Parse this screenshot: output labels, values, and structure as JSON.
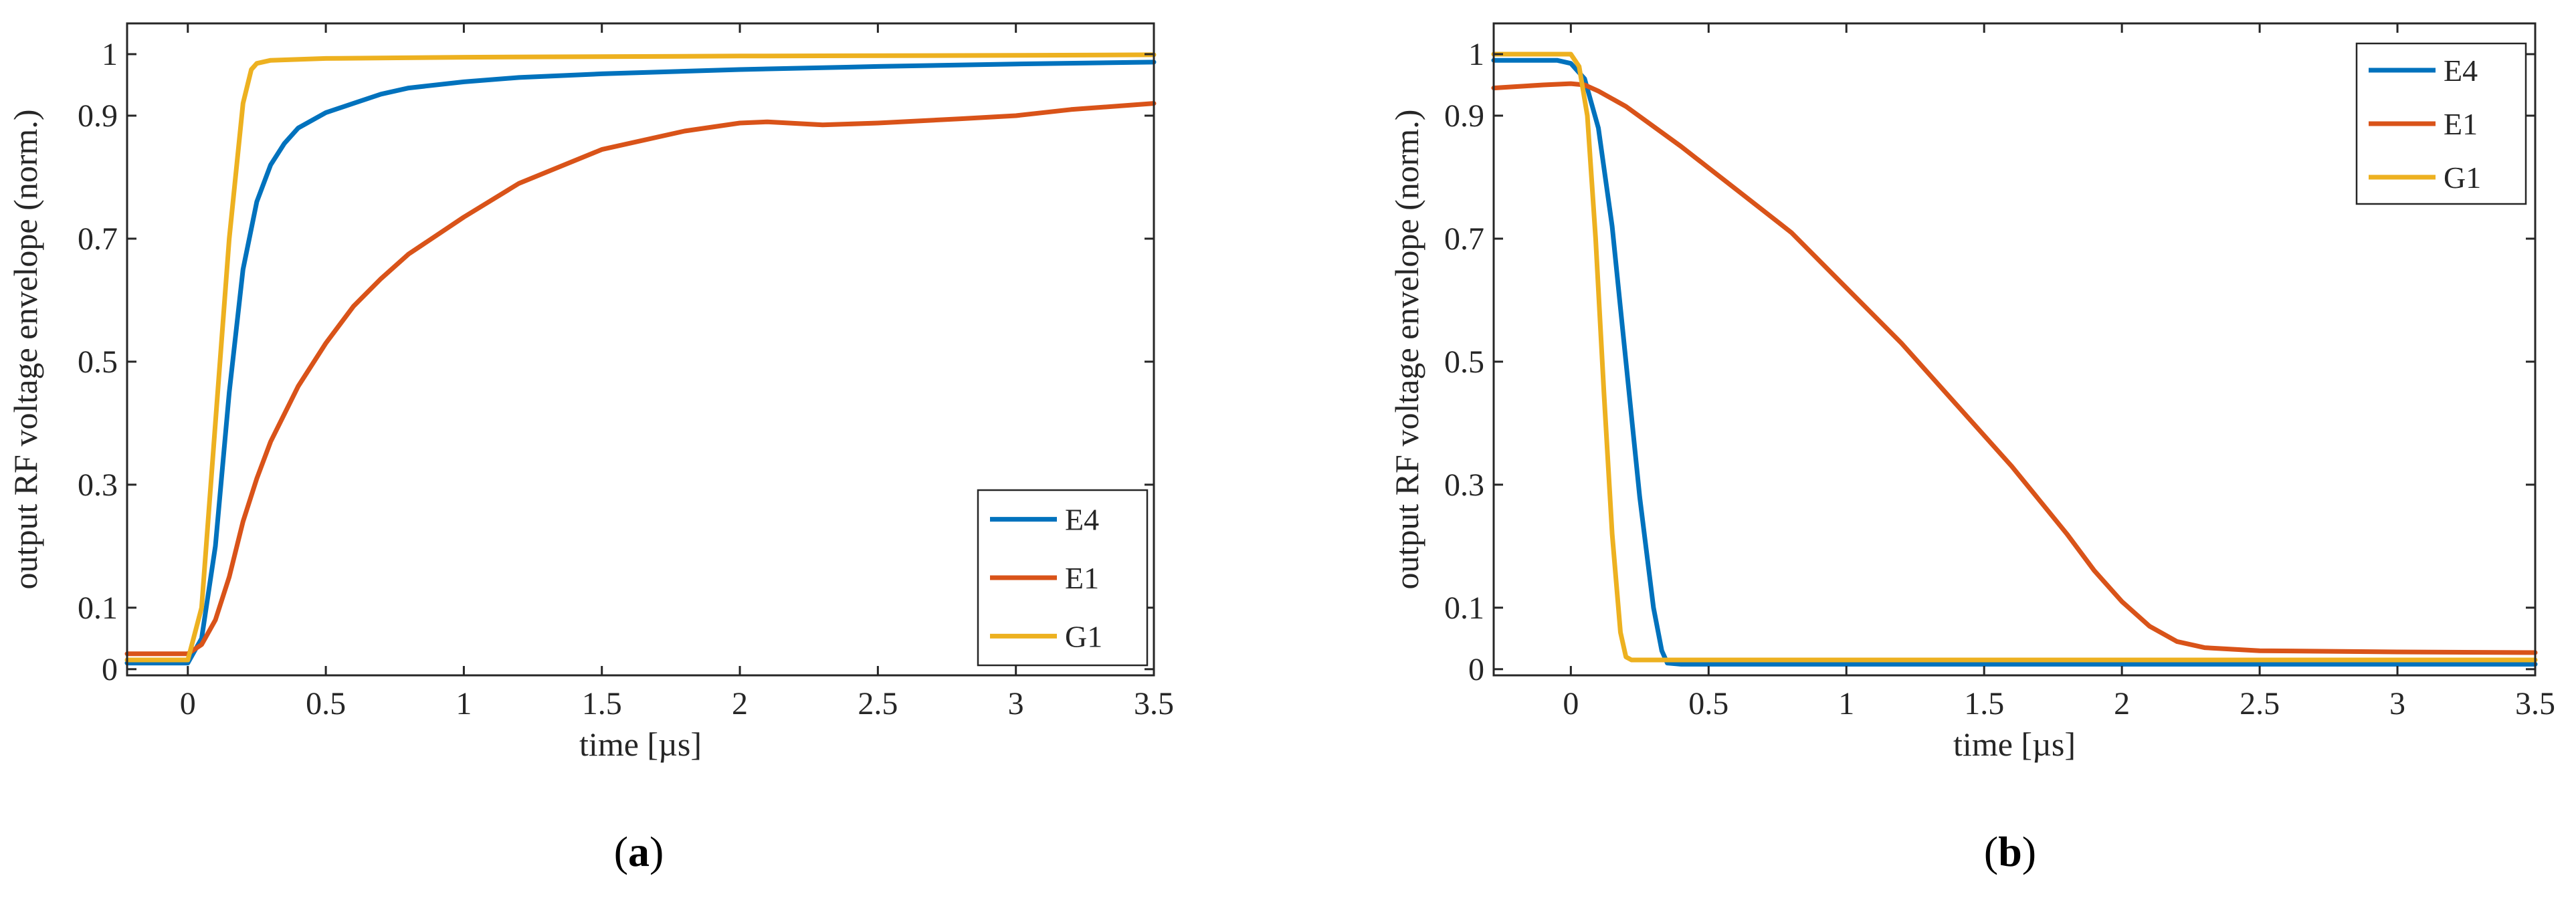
{
  "chart_data": [
    {
      "type": "line",
      "panel_label": "(a)",
      "panel_letter": "a",
      "xlabel": "time [µs]",
      "ylabel": "output RF voltage envelope (norm.)",
      "xlim": [
        -0.22,
        3.5
      ],
      "ylim": [
        -0.01,
        1.05
      ],
      "xticks": [
        0,
        0.5,
        1,
        1.5,
        2,
        2.5,
        3,
        3.5
      ],
      "xtick_labels": [
        "0",
        "0.5",
        "1",
        "1.5",
        "2",
        "2.5",
        "3",
        "3.5"
      ],
      "yticks": [
        0,
        0.1,
        0.3,
        0.5,
        0.7,
        0.9,
        1
      ],
      "ytick_labels": [
        "0",
        "0.1",
        "0.3",
        "0.5",
        "0.7",
        "0.9",
        "1"
      ],
      "legend_position": "bottom-right",
      "series": [
        {
          "name": "E4",
          "color": "#0072BD",
          "x": [
            -0.22,
            0.0,
            0.05,
            0.1,
            0.15,
            0.2,
            0.25,
            0.3,
            0.35,
            0.4,
            0.5,
            0.6,
            0.7,
            0.8,
            1.0,
            1.2,
            1.5,
            2.0,
            2.5,
            3.0,
            3.5
          ],
          "y": [
            0.01,
            0.01,
            0.05,
            0.2,
            0.45,
            0.65,
            0.76,
            0.82,
            0.855,
            0.88,
            0.905,
            0.92,
            0.935,
            0.945,
            0.955,
            0.962,
            0.968,
            0.975,
            0.98,
            0.984,
            0.987
          ]
        },
        {
          "name": "E1",
          "color": "#D95319",
          "x": [
            -0.22,
            0.0,
            0.05,
            0.1,
            0.15,
            0.2,
            0.25,
            0.3,
            0.4,
            0.5,
            0.6,
            0.7,
            0.8,
            1.0,
            1.2,
            1.5,
            1.8,
            2.0,
            2.1,
            2.3,
            2.5,
            2.8,
            3.0,
            3.2,
            3.5
          ],
          "y": [
            0.025,
            0.025,
            0.04,
            0.08,
            0.15,
            0.24,
            0.31,
            0.37,
            0.46,
            0.53,
            0.59,
            0.635,
            0.675,
            0.735,
            0.79,
            0.845,
            0.875,
            0.888,
            0.89,
            0.885,
            0.888,
            0.895,
            0.9,
            0.91,
            0.92
          ]
        },
        {
          "name": "G1",
          "color": "#EDB120",
          "x": [
            -0.22,
            0.0,
            0.05,
            0.1,
            0.15,
            0.2,
            0.23,
            0.25,
            0.3,
            0.5,
            1.0,
            2.0,
            3.0,
            3.5
          ],
          "y": [
            0.015,
            0.015,
            0.1,
            0.4,
            0.7,
            0.92,
            0.975,
            0.985,
            0.99,
            0.993,
            0.995,
            0.997,
            0.998,
            0.999
          ]
        }
      ]
    },
    {
      "type": "line",
      "panel_label": "(b)",
      "panel_letter": "b",
      "xlabel": "time [µs]",
      "ylabel": "output RF voltage envelope (norm.)",
      "xlim": [
        -0.28,
        3.5
      ],
      "ylim": [
        -0.01,
        1.05
      ],
      "xticks": [
        0,
        0.5,
        1,
        1.5,
        2,
        2.5,
        3,
        3.5
      ],
      "xtick_labels": [
        "0",
        "0.5",
        "1",
        "1.5",
        "2",
        "2.5",
        "3",
        "3.5"
      ],
      "yticks": [
        0,
        0.1,
        0.3,
        0.5,
        0.7,
        0.9,
        1
      ],
      "ytick_labels": [
        "0",
        "0.1",
        "0.3",
        "0.5",
        "0.7",
        "0.9",
        "1"
      ],
      "legend_position": "top-right",
      "series": [
        {
          "name": "E4",
          "color": "#0072BD",
          "x": [
            -0.28,
            -0.05,
            0.0,
            0.05,
            0.1,
            0.15,
            0.2,
            0.25,
            0.3,
            0.33,
            0.35,
            0.4,
            0.5,
            1.0,
            2.0,
            3.0,
            3.5
          ],
          "y": [
            0.99,
            0.99,
            0.985,
            0.96,
            0.88,
            0.72,
            0.5,
            0.28,
            0.1,
            0.03,
            0.01,
            0.008,
            0.008,
            0.008,
            0.008,
            0.008,
            0.008
          ]
        },
        {
          "name": "E1",
          "color": "#D95319",
          "x": [
            -0.28,
            -0.1,
            0.0,
            0.05,
            0.1,
            0.2,
            0.4,
            0.6,
            0.8,
            1.0,
            1.2,
            1.4,
            1.6,
            1.8,
            1.9,
            2.0,
            2.1,
            2.2,
            2.3,
            2.5,
            3.0,
            3.5
          ],
          "y": [
            0.945,
            0.95,
            0.952,
            0.95,
            0.94,
            0.915,
            0.85,
            0.78,
            0.71,
            0.62,
            0.53,
            0.43,
            0.33,
            0.22,
            0.16,
            0.11,
            0.07,
            0.045,
            0.035,
            0.03,
            0.028,
            0.027
          ]
        },
        {
          "name": "G1",
          "color": "#EDB120",
          "x": [
            -0.28,
            0.0,
            0.03,
            0.06,
            0.09,
            0.12,
            0.15,
            0.18,
            0.2,
            0.22,
            0.3,
            0.5,
            1.0,
            2.0,
            3.0,
            3.5
          ],
          "y": [
            1.0,
            1.0,
            0.98,
            0.9,
            0.7,
            0.45,
            0.22,
            0.06,
            0.02,
            0.015,
            0.015,
            0.015,
            0.015,
            0.015,
            0.015,
            0.015
          ]
        }
      ]
    }
  ]
}
